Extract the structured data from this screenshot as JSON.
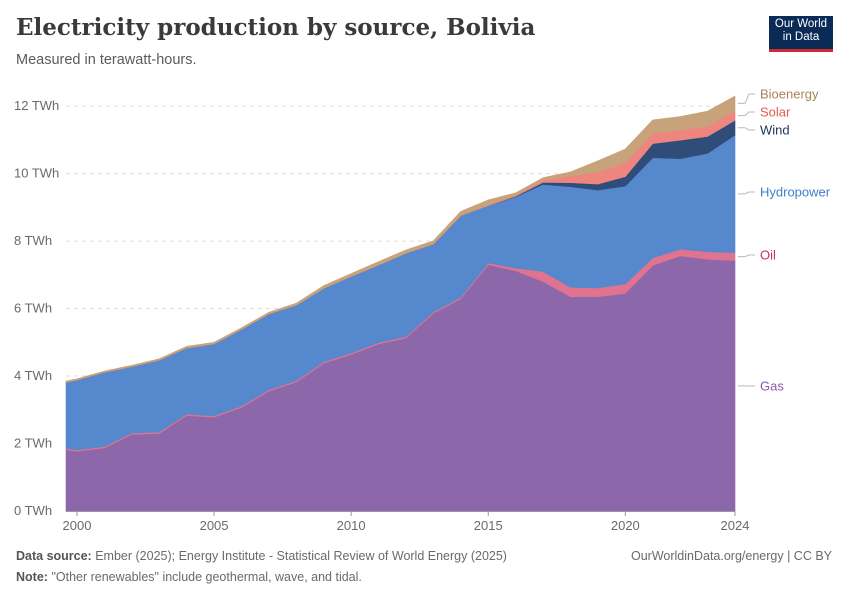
{
  "header": {
    "title": "Electricity production by source, Bolivia",
    "subtitle": "Measured in terawatt-hours.",
    "logo_line1": "Our World",
    "logo_line2": "in Data"
  },
  "footer": {
    "source_label": "Data source:",
    "source_text": "Ember (2025); Energy Institute - Statistical Review of World Energy (2025)",
    "note_label": "Note:",
    "note_text": "\"Other renewables\" include geothermal, wave, and tidal.",
    "credit": "OurWorldinData.org/energy | CC BY"
  },
  "colors": {
    "Gas": "#8c67aa",
    "Oil": "#e0738f",
    "Hydropower": "#5588cc",
    "Wind": "#304d79",
    "Solar": "#ee857f",
    "Bioenergy": "#c8a27a",
    "grid": "#dddddd",
    "axis": "#999999"
  },
  "label_colors": {
    "Gas": "#8c5ba8",
    "Oil": "#c9305c",
    "Hydropower": "#3f7fcb",
    "Wind": "#1d3557",
    "Solar": "#e05a4e",
    "Bioenergy": "#a8835a"
  },
  "chart_data": {
    "type": "area",
    "stacked": true,
    "title": "Electricity production by source, Bolivia",
    "ylabel": "TWh",
    "ylim": [
      0,
      12.3
    ],
    "xlim": [
      1999.6,
      2024
    ],
    "grid": true,
    "x": [
      1999.6,
      2000,
      2001,
      2002,
      2003,
      2004,
      2005,
      2006,
      2007,
      2008,
      2009,
      2010,
      2011,
      2012,
      2013,
      2014,
      2015,
      2016,
      2017,
      2018,
      2019,
      2020,
      2021,
      2022,
      2023,
      2024
    ],
    "x_ticks": [
      {
        "value": 2000,
        "label": "2000"
      },
      {
        "value": 2005,
        "label": "2005"
      },
      {
        "value": 2010,
        "label": "2010"
      },
      {
        "value": 2015,
        "label": "2015"
      },
      {
        "value": 2020,
        "label": "2020"
      },
      {
        "value": 2024,
        "label": "2024"
      }
    ],
    "y_ticks": [
      {
        "value": 0,
        "label": "0 TWh"
      },
      {
        "value": 2,
        "label": "2 TWh"
      },
      {
        "value": 4,
        "label": "4 TWh"
      },
      {
        "value": 6,
        "label": "6 TWh"
      },
      {
        "value": 8,
        "label": "8 TWh"
      },
      {
        "value": 10,
        "label": "10 TWh"
      },
      {
        "value": 12,
        "label": "12 TWh"
      }
    ],
    "series": [
      {
        "name": "Gas",
        "values": [
          1.82,
          1.77,
          1.87,
          2.27,
          2.3,
          2.83,
          2.78,
          3.07,
          3.55,
          3.82,
          4.38,
          4.64,
          4.95,
          5.13,
          5.86,
          6.29,
          7.3,
          7.12,
          6.8,
          6.35,
          6.35,
          6.45,
          7.28,
          7.56,
          7.46,
          7.42
        ]
      },
      {
        "name": "Oil",
        "values": [
          0.04,
          0.04,
          0.04,
          0.04,
          0.04,
          0.04,
          0.04,
          0.04,
          0.04,
          0.04,
          0.04,
          0.04,
          0.04,
          0.04,
          0.04,
          0.04,
          0.05,
          0.08,
          0.3,
          0.28,
          0.26,
          0.28,
          0.22,
          0.2,
          0.22,
          0.24
        ]
      },
      {
        "name": "Hydropower",
        "values": [
          1.95,
          2.07,
          2.2,
          1.97,
          2.13,
          1.96,
          2.13,
          2.27,
          2.25,
          2.24,
          2.18,
          2.27,
          2.3,
          2.47,
          2.01,
          2.42,
          1.7,
          2.11,
          2.58,
          2.98,
          2.9,
          2.9,
          2.97,
          2.68,
          2.92,
          3.48
        ]
      },
      {
        "name": "Wind",
        "values": [
          0,
          0,
          0,
          0,
          0,
          0,
          0,
          0,
          0,
          0,
          0,
          0,
          0,
          0,
          0,
          0,
          0,
          0.02,
          0.06,
          0.12,
          0.18,
          0.28,
          0.42,
          0.55,
          0.5,
          0.44
        ]
      },
      {
        "name": "Solar",
        "values": [
          0,
          0,
          0,
          0,
          0,
          0,
          0,
          0,
          0,
          0,
          0,
          0,
          0,
          0,
          0,
          0.01,
          0.02,
          0.03,
          0.06,
          0.2,
          0.35,
          0.42,
          0.3,
          0.3,
          0.3,
          0.28
        ]
      },
      {
        "name": "Bioenergy",
        "values": [
          0.04,
          0.04,
          0.04,
          0.04,
          0.04,
          0.05,
          0.05,
          0.05,
          0.05,
          0.06,
          0.08,
          0.09,
          0.1,
          0.1,
          0.1,
          0.12,
          0.15,
          0.07,
          0.08,
          0.12,
          0.34,
          0.4,
          0.4,
          0.4,
          0.45,
          0.44
        ]
      }
    ],
    "legend": [
      "Bioenergy",
      "Solar",
      "Wind",
      "Hydropower",
      "Oil",
      "Gas"
    ]
  }
}
